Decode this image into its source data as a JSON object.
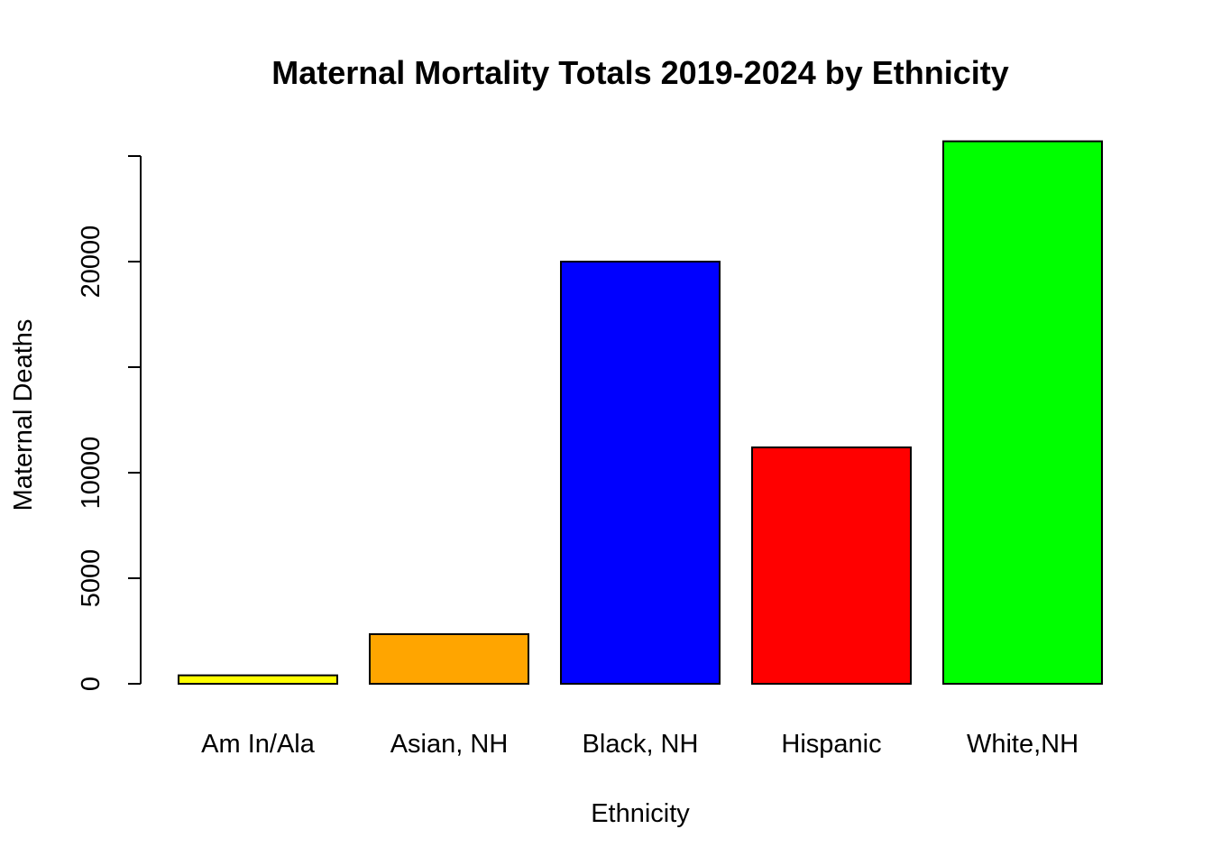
{
  "chart_data": {
    "type": "bar",
    "title": "Maternal Mortality Totals 2019-2024 by Ethnicity",
    "xlabel": "Ethnicity",
    "ylabel": "Maternal Deaths",
    "categories": [
      "Am In/Ala",
      "Asian, NH",
      "Black, NH",
      "Hispanic",
      "White,NH"
    ],
    "values": [
      400,
      2350,
      20000,
      11200,
      25700
    ],
    "colors": [
      "#FFFF00",
      "#FFA500",
      "#0000FF",
      "#FF0000",
      "#00FF00"
    ],
    "ylim": [
      0,
      25000
    ],
    "yticks": [
      0,
      5000,
      10000,
      15000,
      20000,
      25000
    ],
    "ytick_labels": [
      "0",
      "5000",
      "10000",
      "",
      "20000",
      ""
    ],
    "grid": false,
    "legend": "none"
  }
}
